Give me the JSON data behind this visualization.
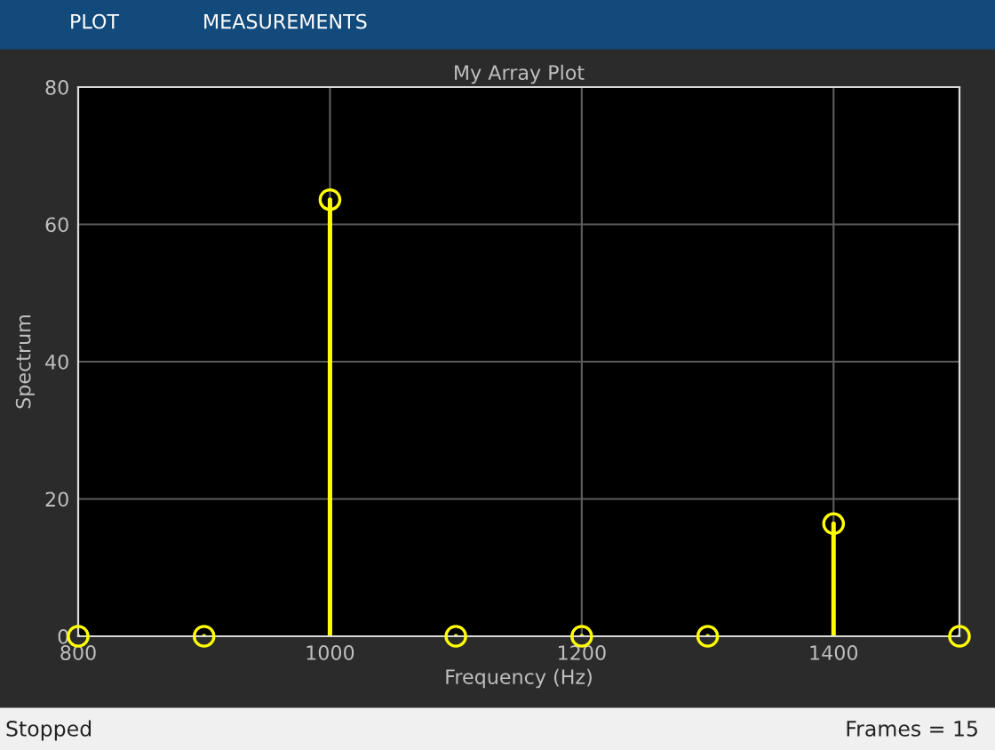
{
  "chart_data": {
    "type": "lollipop",
    "title": "My Array Plot",
    "xlabel": "Frequency (Hz)",
    "ylabel": "Spectrum",
    "x": [
      800,
      900,
      1000,
      1100,
      1200,
      1300,
      1400,
      1500
    ],
    "series": [
      {
        "color": "#ffff00",
        "values": [
          0,
          0,
          63.6,
          0,
          0,
          0,
          16.4,
          0
        ]
      }
    ],
    "xlim": [
      800,
      1500
    ],
    "xticks": [
      800,
      1000,
      1200,
      1400
    ],
    "ylim": [
      0,
      80
    ],
    "yticks": [
      0,
      20,
      40,
      60,
      80
    ],
    "grid": true,
    "marker": "circle",
    "line_style": "solid",
    "annotations": [
      "PLOT",
      "MEASUREMENTS",
      "Stopped",
      "Frames = 15"
    ]
  }
}
